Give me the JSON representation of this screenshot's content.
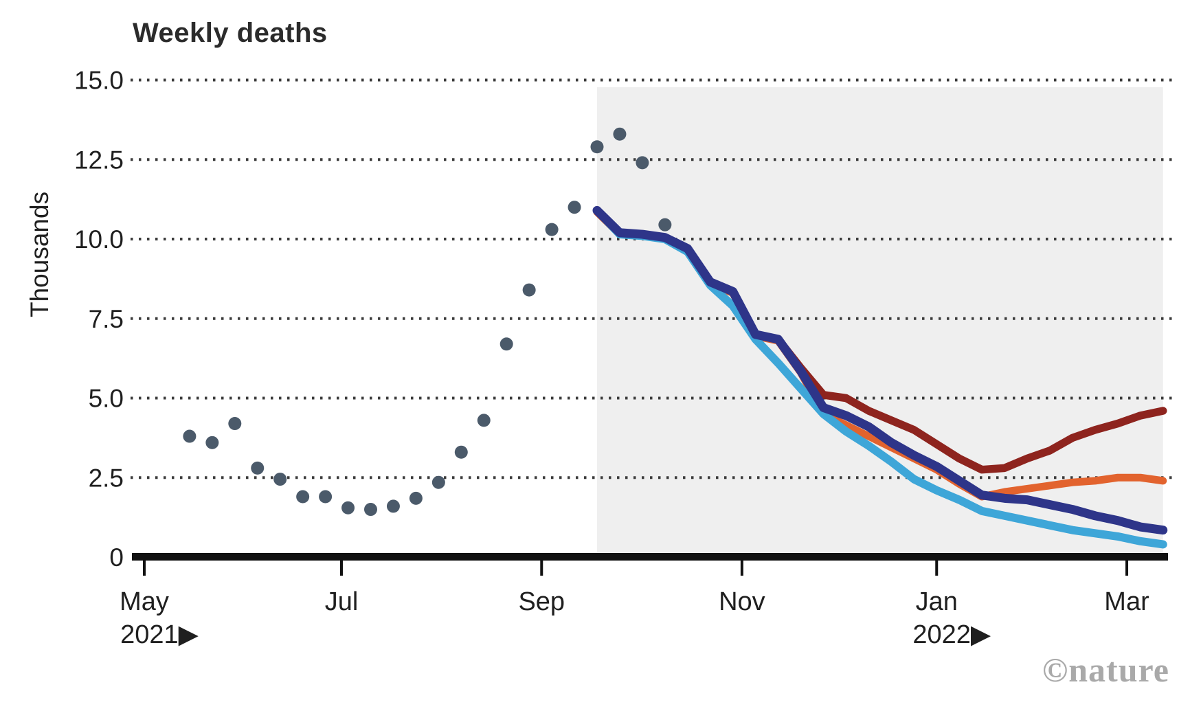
{
  "chart": {
    "title": "Weekly deaths",
    "watermark": "©nature",
    "y_axis": {
      "title": "Thousands",
      "ticks": [
        0,
        2.5,
        5.0,
        7.5,
        10.0,
        12.5,
        15.0
      ],
      "min": 0,
      "max": 15.0
    },
    "x_axis": {
      "ticks": [
        {
          "label": "May",
          "sublabel": "2021▶",
          "week": 0
        },
        {
          "label": "Jul",
          "week": 8.71
        },
        {
          "label": "Sep",
          "week": 17.55
        },
        {
          "label": "Nov",
          "week": 26.4
        },
        {
          "label": "Jan",
          "sublabel": "2022▶",
          "week": 35
        },
        {
          "label": "Mar",
          "week": 43.4
        }
      ]
    },
    "colors": {
      "observed_dots": "#4b5a6a",
      "line_dark_red": "#8e241e",
      "line_orange": "#e2632e",
      "line_navy": "#2e3589",
      "line_light_blue": "#3ea6d8",
      "forecast_shading": "#efefef",
      "gridline": "#3b3b3b",
      "axis": "#111111"
    }
  },
  "chart_data": {
    "type": "mixed",
    "title": "Weekly deaths",
    "ylabel": "Thousands",
    "ylim": [
      0,
      15
    ],
    "y_unit": "thousands of deaths",
    "x_unit": "weeks from first May 2021 tick",
    "grid": "dotted horizontal",
    "legend": "none",
    "forecast_region": {
      "start_week": 20,
      "end_week": 45.0
    },
    "series": [
      {
        "id": "scatter-observed",
        "type": "scatter",
        "color": "#4b5a6a",
        "x_weeks": [
          2,
          3,
          4,
          5,
          6,
          7,
          8,
          9,
          10,
          11,
          12,
          13,
          14,
          15,
          16,
          17,
          18,
          19,
          20,
          21,
          22,
          23
        ],
        "values": [
          3.8,
          3.6,
          4.2,
          2.8,
          2.45,
          1.9,
          1.9,
          1.55,
          1.5,
          1.6,
          1.85,
          2.35,
          3.3,
          4.3,
          6.7,
          8.4,
          10.3,
          11.0,
          12.9,
          13.3,
          12.4,
          10.45
        ]
      },
      {
        "id": "line-dark-red",
        "type": "line",
        "color": "#8e241e",
        "x_weeks": [
          20,
          21,
          22,
          23,
          24,
          25,
          26,
          27,
          28,
          29,
          30,
          31,
          32,
          33,
          34,
          35,
          36,
          37,
          38,
          39,
          40,
          41,
          42,
          43,
          44,
          45
        ],
        "values": [
          10.9,
          10.2,
          10.15,
          10.05,
          9.7,
          8.65,
          8.35,
          7.0,
          6.85,
          5.95,
          5.1,
          5.0,
          4.6,
          4.3,
          4.0,
          3.55,
          3.1,
          2.75,
          2.8,
          3.1,
          3.35,
          3.75,
          4.0,
          4.2,
          4.45,
          4.6
        ]
      },
      {
        "id": "line-orange",
        "type": "line",
        "color": "#e2632e",
        "x_weeks": [
          20,
          21,
          22,
          23,
          24,
          25,
          26,
          27,
          28,
          29,
          30,
          31,
          32,
          33,
          34,
          35,
          36,
          37,
          38,
          39,
          40,
          41,
          42,
          43,
          44,
          45
        ],
        "values": [
          10.85,
          10.15,
          10.1,
          10.0,
          9.65,
          8.6,
          8.3,
          6.95,
          6.8,
          5.8,
          4.5,
          4.15,
          3.8,
          3.45,
          3.1,
          2.75,
          2.3,
          1.9,
          2.05,
          2.15,
          2.25,
          2.35,
          2.4,
          2.5,
          2.5,
          2.4
        ]
      },
      {
        "id": "line-light-blue",
        "type": "line",
        "color": "#3ea6d8",
        "x_weeks": [
          20,
          21,
          22,
          23,
          24,
          25,
          26,
          27,
          28,
          29,
          30,
          31,
          32,
          33,
          34,
          35,
          36,
          37,
          38,
          39,
          40,
          41,
          42,
          43,
          44,
          45
        ],
        "values": [
          10.9,
          10.15,
          10.1,
          10.0,
          9.6,
          8.55,
          7.9,
          6.85,
          6.1,
          5.3,
          4.5,
          3.95,
          3.5,
          3.0,
          2.45,
          2.1,
          1.8,
          1.45,
          1.3,
          1.15,
          1.0,
          0.85,
          0.75,
          0.65,
          0.5,
          0.4
        ]
      },
      {
        "id": "line-navy",
        "type": "line",
        "color": "#2e3589",
        "x_weeks": [
          20,
          21,
          22,
          23,
          24,
          25,
          26,
          27,
          28,
          29,
          30,
          31,
          32,
          33,
          34,
          35,
          36,
          37,
          38,
          39,
          40,
          41,
          42,
          43,
          44,
          45
        ],
        "values": [
          10.9,
          10.2,
          10.15,
          10.05,
          9.7,
          8.65,
          8.35,
          7.0,
          6.85,
          5.85,
          4.7,
          4.45,
          4.1,
          3.6,
          3.2,
          2.85,
          2.4,
          1.95,
          1.85,
          1.8,
          1.65,
          1.5,
          1.3,
          1.15,
          0.95,
          0.85
        ]
      }
    ]
  }
}
